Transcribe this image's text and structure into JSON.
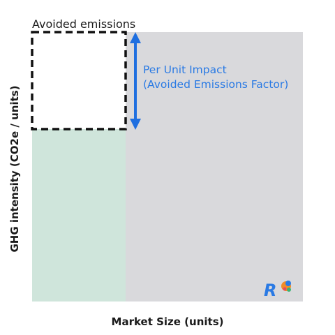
{
  "diagram": {
    "avoided_label": "Avoided emissions",
    "impact_line1": "Per Unit Impact",
    "impact_line2": "(Avoided Emissions Factor)",
    "x_axis_label": "Market Size (units)",
    "y_axis_label": "GHG intensity  (CO2e / units)",
    "logo_letter": "R"
  },
  "colors": {
    "gray_area": "#d9d9dc",
    "green_area": "#cfe5db",
    "dashed_border": "#111111",
    "arrow": "#1f6fe0",
    "text": "#1a1a1a",
    "impact_text": "#2a7ae4"
  }
}
